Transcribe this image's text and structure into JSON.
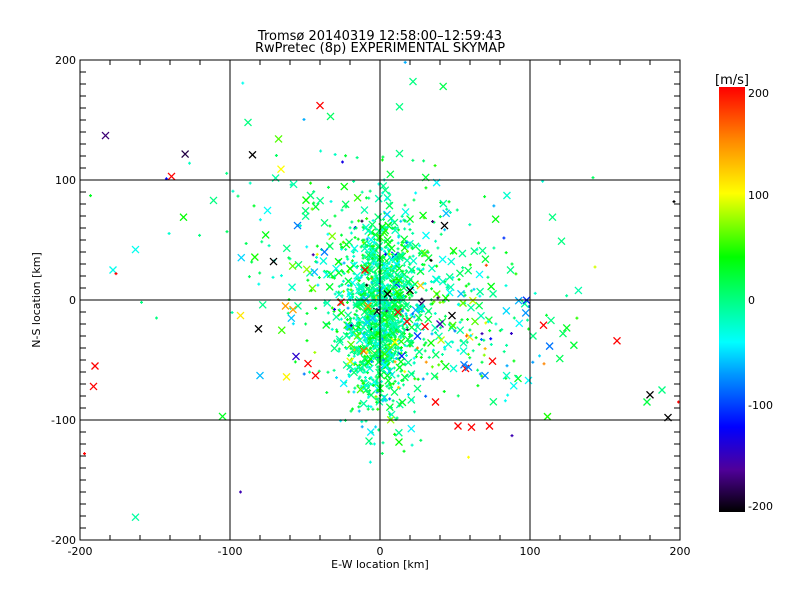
{
  "chart_data": {
    "type": "scatter",
    "title": "Tromsø 20140319 12:58:00–12:59:43",
    "subtitle": "RwPretec (8p) EXPERIMENTAL SKYMAP",
    "xlabel": "E-W location [km]",
    "ylabel": "N-S location [km]",
    "xlim": [
      -200,
      200
    ],
    "ylim": [
      -200,
      200
    ],
    "xticks": [
      "-200",
      "-100",
      "0",
      "100",
      "200"
    ],
    "yticks": [
      "-200",
      "-100",
      "0",
      "100",
      "200"
    ],
    "grid_at": [
      -100,
      0,
      100
    ],
    "grid": true,
    "colorbar": {
      "label": "[m/s]",
      "range": [
        -200,
        200
      ],
      "ticks": [
        "200",
        "100",
        "0",
        "-100",
        "-200"
      ],
      "stops": [
        [
          200,
          "#ff0000"
        ],
        [
          150,
          "#ff8800"
        ],
        [
          100,
          "#ffff00"
        ],
        [
          40,
          "#00ff00"
        ],
        [
          0,
          "#00ff80"
        ],
        [
          -40,
          "#00ffff"
        ],
        [
          -70,
          "#0099ff"
        ],
        [
          -120,
          "#0000ff"
        ],
        [
          -160,
          "#50009a"
        ],
        [
          -200,
          "#000000"
        ]
      ],
      "placement": "right"
    },
    "point_fields": [
      "x_km",
      "y_km",
      "velocity_m_s",
      "marker"
    ],
    "points": [
      [
        -183,
        137,
        -170,
        "x"
      ],
      [
        -139,
        103,
        200,
        "x"
      ],
      [
        -127,
        114,
        -20,
        "+"
      ],
      [
        -88,
        148,
        0,
        "x"
      ],
      [
        -40,
        162,
        200,
        "x"
      ],
      [
        -33,
        153,
        10,
        "x"
      ],
      [
        -85,
        121,
        -200,
        "x"
      ],
      [
        -66,
        109,
        100,
        "x"
      ],
      [
        22,
        182,
        0,
        "x"
      ],
      [
        13,
        161,
        0,
        "x"
      ],
      [
        13,
        122,
        0,
        "x"
      ],
      [
        -193,
        87,
        30,
        "+"
      ],
      [
        -131,
        69,
        40,
        "x"
      ],
      [
        -111,
        83,
        0,
        "x"
      ],
      [
        -163,
        42,
        -35,
        "x"
      ],
      [
        -178,
        25,
        -35,
        "x"
      ],
      [
        -176,
        22,
        200,
        "+"
      ],
      [
        -190,
        -55,
        200,
        "x"
      ],
      [
        -191,
        -72,
        200,
        "x"
      ],
      [
        -105,
        -97,
        30,
        "x"
      ],
      [
        -163,
        -181,
        -10,
        "x"
      ],
      [
        -197,
        -128,
        200,
        "+"
      ],
      [
        -37,
        40,
        -80,
        "x"
      ],
      [
        -55,
        62,
        -80,
        "x"
      ],
      [
        -71,
        32,
        -200,
        "x"
      ],
      [
        109,
        -21,
        200,
        "x"
      ],
      [
        158,
        -34,
        200,
        "x"
      ],
      [
        180,
        -79,
        -200,
        "x"
      ],
      [
        192,
        -98,
        -200,
        "x"
      ],
      [
        199,
        -85,
        200,
        "+"
      ],
      [
        178,
        -85,
        20,
        "x"
      ],
      [
        188,
        -75,
        0,
        "x"
      ],
      [
        114,
        -17,
        0,
        "x"
      ],
      [
        102,
        -30,
        0,
        "x"
      ],
      [
        122,
        -28,
        10,
        "x"
      ],
      [
        52,
        -105,
        200,
        "x"
      ],
      [
        61,
        -106,
        200,
        "x"
      ],
      [
        73,
        -105,
        200,
        "x"
      ],
      [
        37,
        -85,
        200,
        "x"
      ],
      [
        57,
        -57,
        200,
        "x"
      ],
      [
        75,
        -51,
        200,
        "x"
      ],
      [
        56,
        -54,
        -80,
        "x"
      ],
      [
        59,
        -56,
        -80,
        "x"
      ],
      [
        70,
        -63,
        -75,
        "x"
      ],
      [
        48,
        -13,
        -200,
        "x"
      ],
      [
        99,
        -67,
        -40,
        "x"
      ],
      [
        -56,
        -47,
        -140,
        "x"
      ],
      [
        -48,
        -53,
        200,
        "x"
      ],
      [
        -43,
        -63,
        200,
        "x"
      ],
      [
        -80,
        -63,
        -60,
        "x"
      ],
      [
        -81,
        -24,
        -200,
        "x"
      ],
      [
        115,
        69,
        0,
        "x"
      ],
      [
        121,
        49,
        0,
        "x"
      ],
      [
        43,
        62,
        -200,
        "x"
      ],
      [
        -93,
        -160,
        -150,
        "+"
      ],
      [
        88,
        -113,
        -150,
        "+"
      ],
      [
        59,
        -131,
        100,
        "+"
      ],
      [
        -93,
        -13,
        110,
        "x"
      ],
      [
        -63,
        -5,
        140,
        "x"
      ],
      [
        -58,
        -8,
        140,
        "x"
      ],
      [
        -30,
        70,
        20,
        "+"
      ],
      [
        -25,
        115,
        -130,
        "+"
      ],
      [
        196,
        82,
        -200,
        "+"
      ],
      [
        -149,
        -15,
        0,
        "+"
      ],
      [
        142,
        102,
        10,
        "+"
      ],
      [
        -102,
        57,
        10,
        "+"
      ],
      [
        -159,
        -2,
        0,
        "+"
      ],
      [
        87,
        25,
        0,
        "x"
      ],
      [
        88,
        30,
        20,
        "+"
      ],
      [
        34,
        33,
        -200,
        "+"
      ],
      [
        25,
        -40,
        150,
        "+"
      ],
      [
        84,
        12,
        -30,
        "+"
      ],
      [
        -10,
        25,
        200,
        "x"
      ],
      [
        12,
        -10,
        200,
        "x"
      ],
      [
        18,
        -18,
        200,
        "x"
      ],
      [
        30,
        -22,
        200,
        "x"
      ],
      [
        5,
        5,
        -200,
        "x"
      ],
      [
        20,
        8,
        -200,
        "x"
      ],
      [
        -5,
        -15,
        -60,
        "x"
      ],
      [
        25,
        -30,
        -100,
        "x"
      ],
      [
        40,
        -20,
        -150,
        "x"
      ],
      [
        10,
        -35,
        100,
        "x"
      ],
      [
        -15,
        -30,
        60,
        "x"
      ],
      [
        -8,
        -5,
        150,
        "x"
      ],
      [
        27,
        12,
        120,
        "x"
      ]
    ],
    "clusters": [
      {
        "center": [
          0,
          -15
        ],
        "spread": [
          12,
          40
        ],
        "count": 1100,
        "velocity_spread": 25,
        "cross_fraction": 0.25
      },
      {
        "center": [
          0,
          25
        ],
        "spread": [
          40,
          30
        ],
        "count": 260,
        "velocity_spread": 30,
        "cross_fraction": 0.3
      },
      {
        "center": [
          30,
          -30
        ],
        "spread": [
          40,
          30
        ],
        "count": 220,
        "velocity_spread": 50,
        "cross_fraction": 0.35
      },
      {
        "center": [
          -20,
          60
        ],
        "spread": [
          60,
          50
        ],
        "count": 90,
        "velocity_spread": 35,
        "cross_fraction": 0.3
      }
    ]
  }
}
